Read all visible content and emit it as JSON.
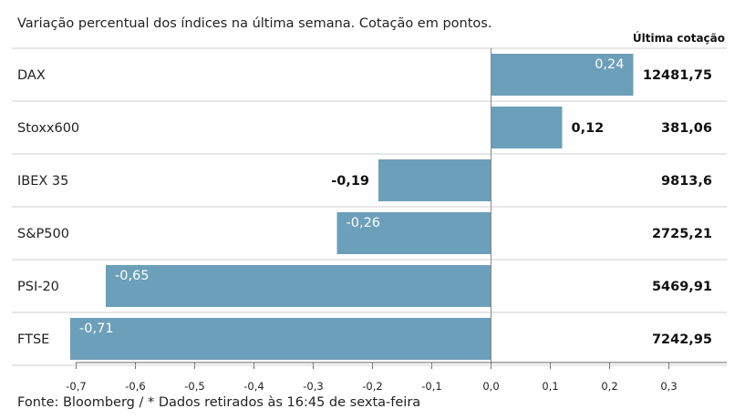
{
  "subtitle": "Variação percentual dos índices na última semana. Cotação em pontos.",
  "last_quote_header": "Última cotação",
  "footnote": "Fonte: Bloomberg / * Dados retirados às 16:45 de sexta-feira",
  "colors": {
    "bar": "#6c9fba",
    "grid": "#cfcfcf",
    "axis": "#666666"
  },
  "chart_data": {
    "type": "bar",
    "orientation": "horizontal",
    "categories": [
      "DAX",
      "Stoxx600",
      "IBEX 35",
      "S&P500",
      "PSI-20",
      "FTSE"
    ],
    "values": [
      0.24,
      0.12,
      -0.19,
      -0.26,
      -0.65,
      -0.71
    ],
    "value_labels": [
      "0,24",
      "0,12",
      "-0,19",
      "-0,26",
      "-0,65",
      "-0,71"
    ],
    "last_quote": [
      "12481,75",
      "381,06",
      "9813,6",
      "2725,21",
      "5469,91",
      "7242,95"
    ],
    "xlim": [
      -0.72,
      0.32
    ],
    "xticks": [
      -0.7,
      -0.6,
      -0.5,
      -0.4,
      -0.3,
      -0.2,
      -0.1,
      0.0,
      0.1,
      0.2,
      0.3
    ],
    "xtick_labels": [
      "-0,7",
      "-0,6",
      "-0,5",
      "-0,4",
      "-0,3",
      "-0,2",
      "-0,1",
      "0,0",
      "0,1",
      "0,2",
      "0,3"
    ],
    "grid": true
  }
}
